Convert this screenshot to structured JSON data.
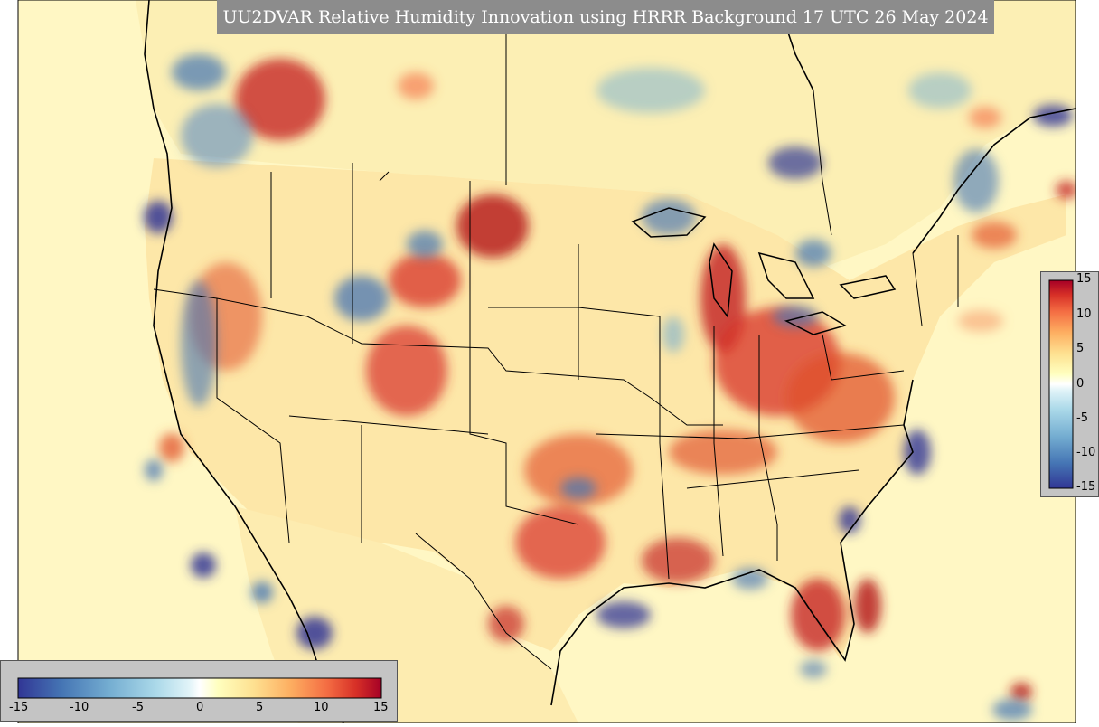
{
  "title": "UU2DVAR Relative Humidity Innovation using HRRR Background 17 UTC 26 May 2024",
  "colorbar": {
    "ticks_vertical": [
      "15",
      "10",
      "5",
      "0",
      "-5",
      "-10",
      "-15"
    ],
    "ticks_horizontal": [
      "-15",
      "-10",
      "-5",
      "0",
      "5",
      "10",
      "15"
    ],
    "min": -15,
    "max": 15,
    "colors": [
      "#313695",
      "#4575b4",
      "#74add1",
      "#abd9e9",
      "#e0f3f8",
      "#ffffbf",
      "#fee090",
      "#fdae61",
      "#f46d43",
      "#d73027",
      "#a50026"
    ]
  },
  "map": {
    "ocean_color": "#fff7c4",
    "land_base_color": "#fde7a8",
    "border_color": "#000000"
  }
}
